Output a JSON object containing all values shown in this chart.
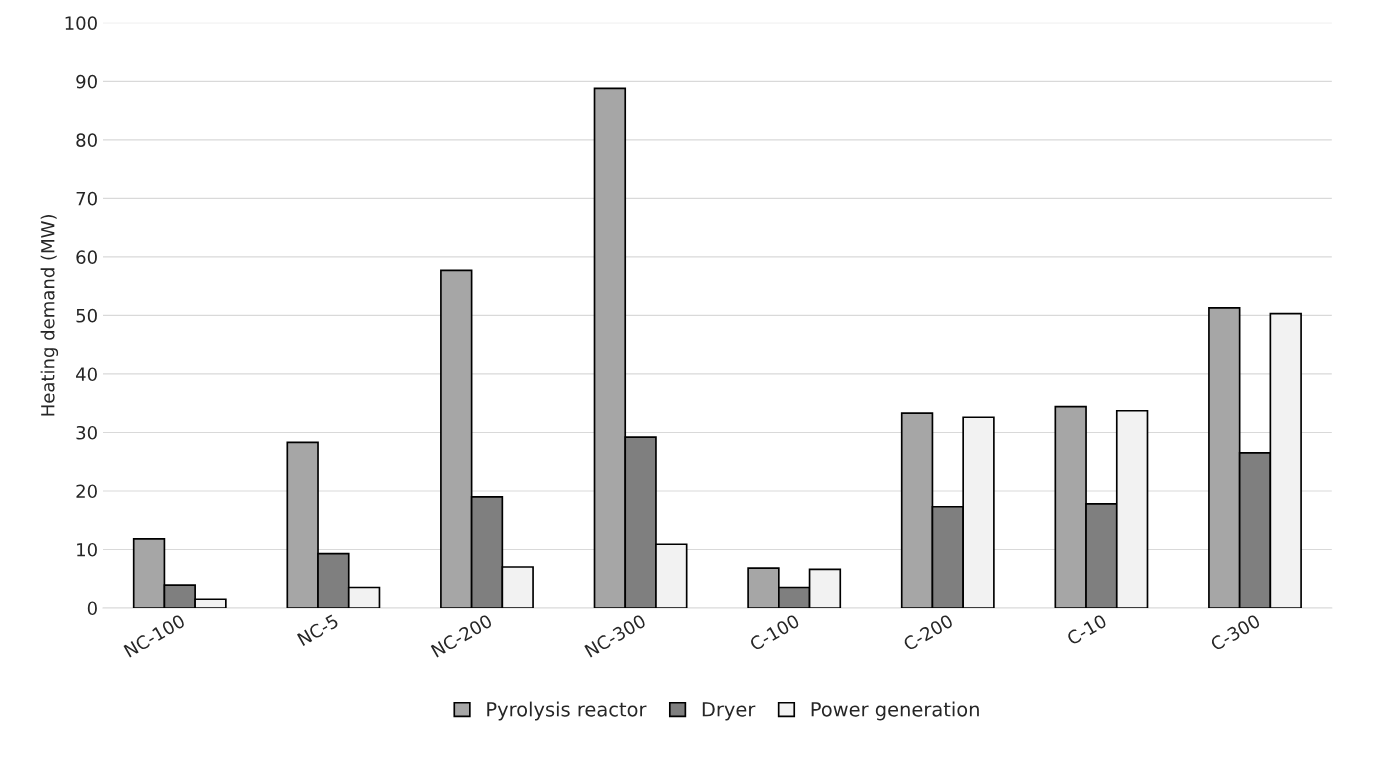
{
  "chart_data": {
    "type": "bar",
    "ylabel": "Heating demand (MW)",
    "categories": [
      "NC-100",
      "NC-5",
      "NC-200",
      "NC-300",
      "C-100",
      "C-200",
      "C-10",
      "C-300"
    ],
    "series": [
      {
        "name": "Pyrolysis reactor",
        "color": "#a6a6a6",
        "values": [
          11.8,
          28.3,
          57.7,
          88.8,
          6.8,
          33.3,
          34.4,
          51.3
        ]
      },
      {
        "name": "Dryer",
        "color": "#7f7f7f",
        "values": [
          3.9,
          9.3,
          19.0,
          29.2,
          3.5,
          17.3,
          17.8,
          26.5
        ]
      },
      {
        "name": "Power generation",
        "color": "#f2f2f2",
        "values": [
          1.5,
          3.5,
          7.0,
          10.9,
          6.6,
          32.6,
          33.7,
          50.3
        ]
      }
    ],
    "ylim": [
      0,
      100
    ],
    "yticks": [
      0,
      10,
      20,
      30,
      40,
      50,
      60,
      70,
      80,
      90,
      100
    ],
    "grid": "y",
    "legend": "bottom"
  }
}
